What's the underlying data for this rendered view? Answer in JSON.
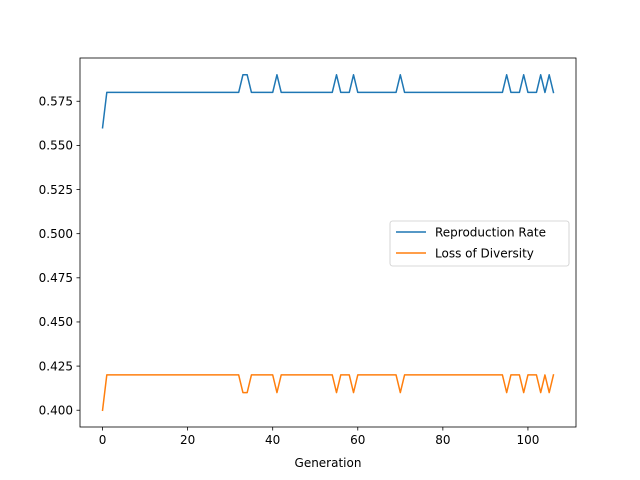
{
  "chart_data": {
    "type": "line",
    "title": "",
    "xlabel": "Generation",
    "ylabel": "",
    "xlim": [
      -5.3,
      111.3
    ],
    "ylim": [
      0.3905,
      0.5995
    ],
    "xticks": [
      0,
      20,
      40,
      60,
      80,
      100
    ],
    "yticks": [
      0.4,
      0.425,
      0.45,
      0.475,
      0.5,
      0.525,
      0.55,
      0.575
    ],
    "grid": false,
    "legend": "center-right",
    "series": [
      {
        "name": "Reproduction Rate",
        "color": "#1f77b4",
        "x": [
          0,
          1,
          32,
          33,
          34,
          35,
          40,
          41,
          42,
          54,
          55,
          56,
          58,
          59,
          60,
          69,
          70,
          71,
          94,
          95,
          96,
          98,
          99,
          100,
          102,
          103,
          104,
          105,
          106
        ],
        "y": [
          0.56,
          0.58,
          0.58,
          0.59,
          0.59,
          0.58,
          0.58,
          0.59,
          0.58,
          0.58,
          0.59,
          0.58,
          0.58,
          0.59,
          0.58,
          0.58,
          0.59,
          0.58,
          0.58,
          0.59,
          0.58,
          0.58,
          0.59,
          0.58,
          0.58,
          0.59,
          0.58,
          0.59,
          0.58
        ]
      },
      {
        "name": "Loss of Diversity",
        "color": "#ff7f0e",
        "x": [
          0,
          1,
          32,
          33,
          34,
          35,
          40,
          41,
          42,
          54,
          55,
          56,
          58,
          59,
          60,
          69,
          70,
          71,
          94,
          95,
          96,
          98,
          99,
          100,
          102,
          103,
          104,
          105,
          106
        ],
        "y": [
          0.4,
          0.42,
          0.42,
          0.41,
          0.41,
          0.42,
          0.42,
          0.41,
          0.42,
          0.42,
          0.41,
          0.42,
          0.42,
          0.41,
          0.42,
          0.42,
          0.41,
          0.42,
          0.42,
          0.41,
          0.42,
          0.42,
          0.41,
          0.42,
          0.42,
          0.41,
          0.42,
          0.41,
          0.42
        ]
      }
    ]
  }
}
